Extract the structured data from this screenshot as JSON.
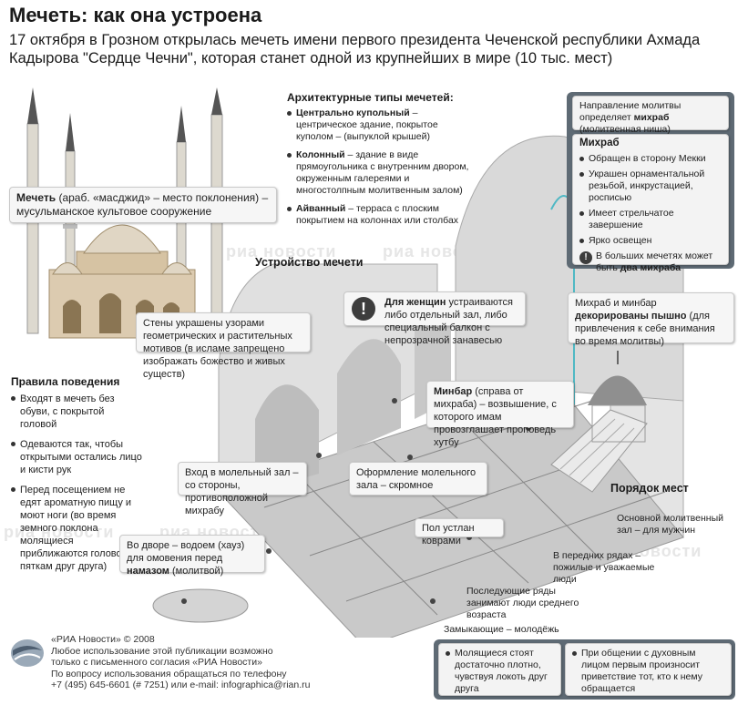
{
  "title": "Мечеть: как она устроена",
  "subtitle": "17 октября в Грозном открылась мечеть имени первого президента Чеченской республики Ахмада Кадырова \"Сердце Чечни\", которая станет одной из крупнейших в мире (10 тыс. мест)",
  "watermark": "риа новости",
  "mosque_def": {
    "term": "Мечеть",
    "text": " (араб. «масджид» – место поклонения) – мусульманское культовое сооружение"
  },
  "arch_types": {
    "heading": "Архитектурные типы мечетей:",
    "items": [
      {
        "term": "Центрально купольный",
        "text": " – центрическое здание, покрытое куполом – (выпуклой крышей)"
      },
      {
        "term": "Колонный",
        "text": " – здание в виде прямоугольника с внутренним двором, окруженным галереями и многостолпным молитвенным залом)"
      },
      {
        "term": "Айванный",
        "text": " – терраса с плоским покрытием на колоннах или столбах"
      }
    ]
  },
  "structure_heading": "Устройство мечети",
  "women": {
    "term": "Для женщин",
    "text": " устраиваются либо отдельный зал, либо специальный балкон с непрозрачной занавесью"
  },
  "walls": "Стены украшены узорами геометрических и растительных мотивов (в исламе запрещено изображать божество и живых существ)",
  "mihrab_panel": {
    "intro": "Направление молитвы определяет ",
    "intro_term": "михраб",
    "intro_end": " (молитвенная ниша)",
    "heading": "Михраб",
    "items": [
      "Обращен в сторону Мекки",
      "Украшен орнаментальной резьбой, инкрустацией, росписью",
      "Имеет стрельчатое завершение",
      "Ярко освещен"
    ],
    "warning_text": "В больших мечетях может быть ",
    "warning_term": "два михраба"
  },
  "decor": {
    "text1": "Михраб и минбар ",
    "term": "декорированы пышно",
    "text2": " (для привлечения к себе внимания во время молитвы)"
  },
  "minbar": {
    "term": "Минбар",
    "text": " (справа от михраба) – возвышение, с которого имам провозглашает проповедь хутбу"
  },
  "rules": {
    "heading": "Правила поведения",
    "items": [
      "Входят в мечеть без обуви, с покрытой головой",
      "Одеваются так, чтобы открытыми остались лицо и кисти рук",
      "Перед посещением не едят ароматную пищу и моют ноги (во время земного поклона молящиеся приближаются головой к пяткам друг друга)"
    ]
  },
  "entrance": "Вход в молельный зал – со стороны, противоположной михрабу",
  "decoration_hall": "Оформление молельного зала – скромное",
  "carpets": "Пол устлан коврами",
  "ablution": {
    "text1": "Во дворе – водоем (хауз) для омовения перед ",
    "term": "намазом",
    "text2": " (молитвой)"
  },
  "order": {
    "heading": "Порядок мест",
    "main_hall": "Основной молитвенный зал – для мужчин",
    "front": "В передних рядах – пожилые и уважаемые люди",
    "back": "Последующие ряды занимают люди среднего возраста",
    "closing": "Замыкающие – молодёжь"
  },
  "bottom_notes": [
    "Молящиеся стоят достаточно плотно, чувствуя локоть друг друга",
    "При общении с духовным лицом первым произносит приветствие тот, кто к нему обращается"
  ],
  "footer": [
    "«РИА Новости» © 2008",
    "Любое использование этой публикации возможно",
    "только с письменного согласия «РИА Новости»",
    "По вопросу использования обращаться по телефону",
    "+7 (495) 645-6601 (# 7251) или e-mail: infographica@rian.ru"
  ]
}
